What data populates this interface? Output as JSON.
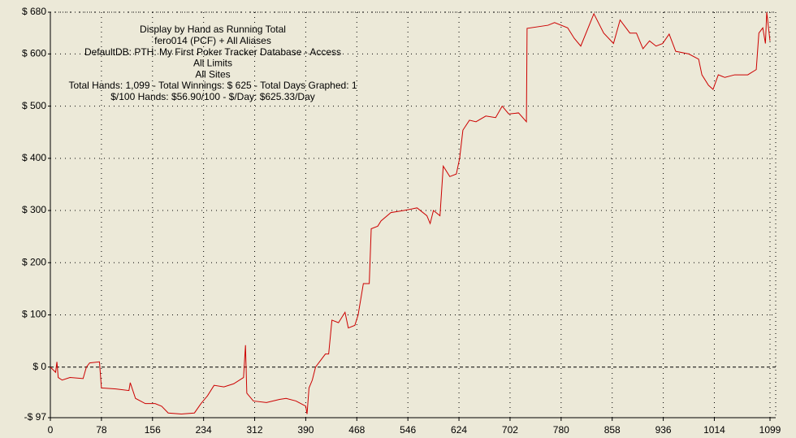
{
  "chart_data": {
    "type": "line",
    "annotations": [
      "Display by Hand as Running Total",
      "fero014 (PCF) + All Aliases",
      "DefaultDB: PTH: My First Poker Tracker Database - Access",
      "All Limits",
      "All Sites",
      "Total Hands: 1,099 - Total Winnings: $ 625 - Total Days Graphed: 1",
      "$/100 Hands: $56.90/100 - $/Day: $625.33/Day"
    ],
    "x": [
      0,
      8,
      10,
      12,
      18,
      30,
      50,
      55,
      60,
      75,
      78,
      100,
      120,
      122,
      130,
      145,
      160,
      170,
      180,
      200,
      220,
      230,
      240,
      250,
      265,
      280,
      295,
      298,
      300,
      310,
      330,
      350,
      360,
      375,
      390,
      392,
      395,
      400,
      405,
      420,
      425,
      430,
      440,
      450,
      455,
      465,
      470,
      478,
      487,
      490,
      500,
      505,
      520,
      540,
      560,
      575,
      580,
      585,
      595,
      600,
      610,
      620,
      625,
      630,
      640,
      650,
      665,
      680,
      690,
      700,
      715,
      727,
      728,
      760,
      770,
      790,
      800,
      810,
      830,
      845,
      860,
      870,
      885,
      895,
      905,
      915,
      925,
      935,
      945,
      955,
      975,
      990,
      995,
      1005,
      1012,
      1020,
      1030,
      1045,
      1065,
      1078,
      1082,
      1088,
      1092,
      1094,
      1099
    ],
    "values": [
      0,
      -10,
      10,
      -20,
      -25,
      -20,
      -22,
      0,
      8,
      10,
      -40,
      -42,
      -45,
      -30,
      -60,
      -70,
      -70,
      -75,
      -88,
      -90,
      -88,
      -70,
      -55,
      -35,
      -38,
      -32,
      -20,
      42,
      -50,
      -65,
      -68,
      -62,
      -60,
      -65,
      -75,
      -90,
      -40,
      -25,
      0,
      25,
      25,
      90,
      85,
      105,
      75,
      80,
      100,
      160,
      160,
      265,
      270,
      280,
      296,
      300,
      305,
      290,
      275,
      300,
      290,
      385,
      365,
      370,
      400,
      454,
      473,
      470,
      481,
      478,
      500,
      485,
      487,
      470,
      649,
      655,
      660,
      650,
      630,
      615,
      677,
      640,
      620,
      665,
      640,
      640,
      610,
      625,
      615,
      620,
      638,
      605,
      600,
      590,
      560,
      540,
      532,
      560,
      555,
      560,
      560,
      570,
      640,
      650,
      620,
      680,
      625
    ],
    "color": "#cc0000",
    "xlim": [
      0,
      1099
    ],
    "xticks": [
      0,
      78,
      156,
      234,
      312,
      390,
      468,
      546,
      624,
      702,
      780,
      858,
      936,
      1014,
      1099
    ],
    "ylim": [
      -97,
      680
    ],
    "yticks": [
      {
        "value": -97,
        "label": "-$ 97"
      },
      {
        "value": 0,
        "label": "$ 0"
      },
      {
        "value": 100,
        "label": "$ 100"
      },
      {
        "value": 200,
        "label": "$ 200"
      },
      {
        "value": 300,
        "label": "$ 300"
      },
      {
        "value": 400,
        "label": "$ 400"
      },
      {
        "value": 500,
        "label": "$ 500"
      },
      {
        "value": 600,
        "label": "$ 600"
      },
      {
        "value": 680,
        "label": "$ 680"
      }
    ],
    "grid": true
  }
}
